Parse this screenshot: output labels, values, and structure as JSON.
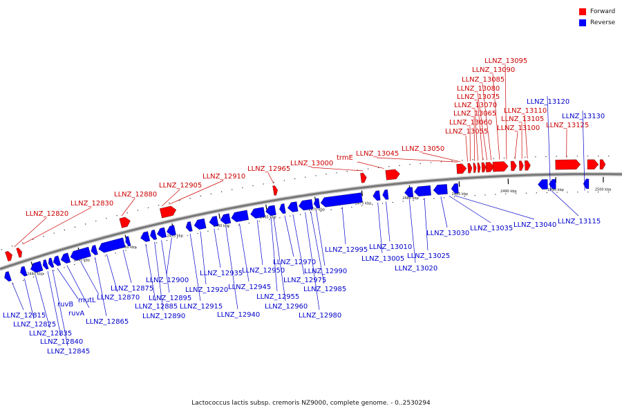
{
  "caption": "Lactococcus lactis subsp. cremoris NZ9000, complete genome. - 0..2530294",
  "legend": {
    "forward_label": "Forward",
    "reverse_label": "Reverse",
    "forward_color": "#ff0000",
    "reverse_color": "#0000ff"
  },
  "backbone_color": "#777777",
  "ticks": [
    "2440 kbp",
    "2445 kbp",
    "2450 kbp",
    "2455 kbp",
    "2460 kbp",
    "2465 kbp",
    "2470 kbp",
    "2475 kbp",
    "2480 kbp",
    "2485 kbp",
    "2490 kbp",
    "2495 kbp",
    "2500 kbp"
  ],
  "genes": [
    {
      "name": "LLNZ_12815",
      "strand": "reverse"
    },
    {
      "name": "LLNZ_12820",
      "strand": "forward"
    },
    {
      "name": "LLNZ_12825",
      "strand": "reverse"
    },
    {
      "name": "LLNZ_12830",
      "strand": "forward"
    },
    {
      "name": "LLNZ_12835",
      "strand": "reverse"
    },
    {
      "name": "LLNZ_12840",
      "strand": "reverse"
    },
    {
      "name": "LLNZ_12845",
      "strand": "reverse"
    },
    {
      "name": "ruvB",
      "strand": "reverse"
    },
    {
      "name": "ruvA",
      "strand": "reverse"
    },
    {
      "name": "mutL",
      "strand": "reverse"
    },
    {
      "name": "LLNZ_12865",
      "strand": "reverse"
    },
    {
      "name": "LLNZ_12870",
      "strand": "reverse"
    },
    {
      "name": "LLNZ_12875",
      "strand": "reverse"
    },
    {
      "name": "LLNZ_12880",
      "strand": "forward"
    },
    {
      "name": "LLNZ_12885",
      "strand": "reverse"
    },
    {
      "name": "LLNZ_12890",
      "strand": "reverse"
    },
    {
      "name": "LLNZ_12895",
      "strand": "reverse"
    },
    {
      "name": "LLNZ_12900",
      "strand": "reverse"
    },
    {
      "name": "LLNZ_12905",
      "strand": "forward"
    },
    {
      "name": "LLNZ_12910",
      "strand": "forward"
    },
    {
      "name": "LLNZ_12915",
      "strand": "reverse"
    },
    {
      "name": "LLNZ_12920",
      "strand": "reverse"
    },
    {
      "name": "LLNZ_12935",
      "strand": "reverse"
    },
    {
      "name": "LLNZ_12940",
      "strand": "reverse"
    },
    {
      "name": "LLNZ_12945",
      "strand": "reverse"
    },
    {
      "name": "LLNZ_12950",
      "strand": "reverse"
    },
    {
      "name": "LLNZ_12955",
      "strand": "reverse"
    },
    {
      "name": "LLNZ_12960",
      "strand": "reverse"
    },
    {
      "name": "LLNZ_12965",
      "strand": "forward"
    },
    {
      "name": "LLNZ_12970",
      "strand": "reverse"
    },
    {
      "name": "LLNZ_12975",
      "strand": "reverse"
    },
    {
      "name": "LLNZ_12980",
      "strand": "reverse"
    },
    {
      "name": "LLNZ_12985",
      "strand": "reverse"
    },
    {
      "name": "LLNZ_12990",
      "strand": "reverse"
    },
    {
      "name": "LLNZ_12995",
      "strand": "reverse"
    },
    {
      "name": "LLNZ_13000",
      "strand": "forward"
    },
    {
      "name": "trmE",
      "strand": "forward"
    },
    {
      "name": "LLNZ_13005",
      "strand": "reverse"
    },
    {
      "name": "LLNZ_13010",
      "strand": "reverse"
    },
    {
      "name": "LLNZ_13020",
      "strand": "reverse"
    },
    {
      "name": "LLNZ_13025",
      "strand": "reverse"
    },
    {
      "name": "LLNZ_13030",
      "strand": "reverse"
    },
    {
      "name": "LLNZ_13035",
      "strand": "reverse"
    },
    {
      "name": "LLNZ_13040",
      "strand": "reverse"
    },
    {
      "name": "LLNZ_13045",
      "strand": "forward"
    },
    {
      "name": "LLNZ_13050",
      "strand": "forward"
    },
    {
      "name": "LLNZ_13055",
      "strand": "forward"
    },
    {
      "name": "LLNZ_13060",
      "strand": "forward"
    },
    {
      "name": "LLNZ_13065",
      "strand": "forward"
    },
    {
      "name": "LLNZ_13070",
      "strand": "forward"
    },
    {
      "name": "LLNZ_13075",
      "strand": "forward"
    },
    {
      "name": "LLNZ_13080",
      "strand": "forward"
    },
    {
      "name": "LLNZ_13085",
      "strand": "forward"
    },
    {
      "name": "LLNZ_13090",
      "strand": "forward"
    },
    {
      "name": "LLNZ_13095",
      "strand": "forward"
    },
    {
      "name": "LLNZ_13100",
      "strand": "forward"
    },
    {
      "name": "LLNZ_13105",
      "strand": "forward"
    },
    {
      "name": "LLNZ_13110",
      "strand": "forward"
    },
    {
      "name": "LLNZ_13115",
      "strand": "reverse"
    },
    {
      "name": "LLNZ_13120",
      "strand": "reverse"
    },
    {
      "name": "LLNZ_13125",
      "strand": "forward"
    },
    {
      "name": "LLNZ_13130",
      "strand": "reverse"
    }
  ]
}
